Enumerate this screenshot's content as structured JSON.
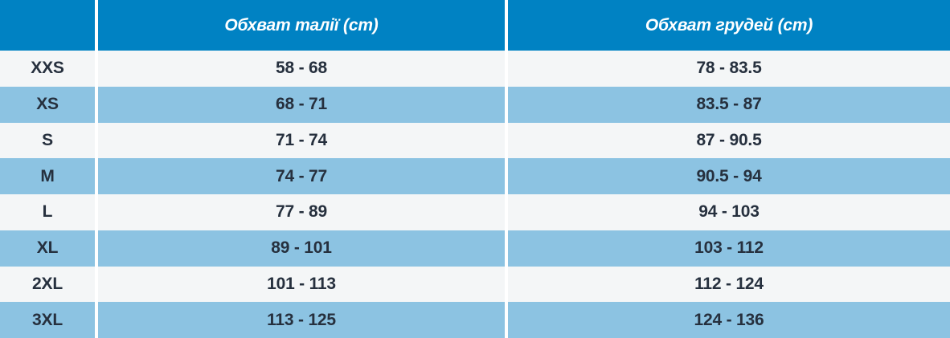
{
  "chart_data": {
    "type": "table",
    "title": "",
    "columns": [
      "",
      "Обхват талії (cm)",
      "Обхват грудей (cm)"
    ],
    "rows": [
      {
        "size": "XXS",
        "waist": "58 - 68",
        "chest": "78 - 83.5"
      },
      {
        "size": "XS",
        "waist": "68 - 71",
        "chest": "83.5 - 87"
      },
      {
        "size": "S",
        "waist": "71 - 74",
        "chest": "87 - 90.5"
      },
      {
        "size": "M",
        "waist": "74 - 77",
        "chest": "90.5 - 94"
      },
      {
        "size": "L",
        "waist": "77 - 89",
        "chest": "94 - 103"
      },
      {
        "size": "XL",
        "waist": "89 - 101",
        "chest": "103 - 112"
      },
      {
        "size": "2XL",
        "waist": "101 - 113",
        "chest": "112 - 124"
      },
      {
        "size": "3XL",
        "waist": "113 - 125",
        "chest": "124 - 136"
      }
    ]
  },
  "table": {
    "header": {
      "corner_label": "",
      "waist_label": "Обхват талії (cm)",
      "chest_label": "Обхват грудей (cm)"
    },
    "rows": [
      {
        "size": "XXS",
        "waist": "58 - 68",
        "chest": "78 - 83.5"
      },
      {
        "size": "XS",
        "waist": "68 - 71",
        "chest": "83.5 - 87"
      },
      {
        "size": "S",
        "waist": "71 - 74",
        "chest": "87 - 90.5"
      },
      {
        "size": "M",
        "waist": "74 - 77",
        "chest": "90.5 - 94"
      },
      {
        "size": "L",
        "waist": "77 - 89",
        "chest": "94 - 103"
      },
      {
        "size": "XL",
        "waist": "89 - 101",
        "chest": "103 - 112"
      },
      {
        "size": "2XL",
        "waist": "101 - 113",
        "chest": "112 - 124"
      },
      {
        "size": "3XL",
        "waist": "113 - 125",
        "chest": "124 - 136"
      }
    ]
  },
  "colors": {
    "header_bg": "#0082C3",
    "row_light": "#F4F6F7",
    "row_blue": "#8CC3E2",
    "text_dark": "#26303E",
    "text_header": "#FFFFFF",
    "separator": "#FFFFFF"
  }
}
